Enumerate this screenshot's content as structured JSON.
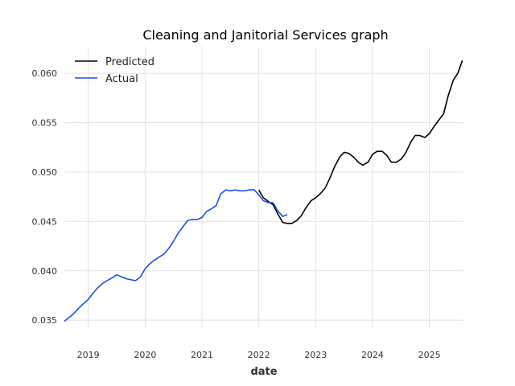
{
  "chart_data": {
    "type": "line",
    "title": "Cleaning and Janitorial Services graph",
    "xlabel": "date",
    "ylabel": "",
    "xlim": [
      2018.58,
      2025.6
    ],
    "ylim": [
      0.0342,
      0.0627
    ],
    "grid": true,
    "legend_position": "top-left",
    "x_ticks": [
      2019,
      2020,
      2021,
      2022,
      2023,
      2024,
      2025
    ],
    "x_tick_labels": [
      "2019",
      "2020",
      "2021",
      "2022",
      "2023",
      "2024",
      "2025"
    ],
    "y_ticks": [
      0.035,
      0.04,
      0.045,
      0.05,
      0.055,
      0.06
    ],
    "y_tick_labels": [
      "0.035",
      "0.040",
      "0.045",
      "0.050",
      "0.055",
      "0.060"
    ],
    "series": [
      {
        "name": "Predicted",
        "color": "#000000",
        "x": [
          2022.0,
          2022.08,
          2022.17,
          2022.25,
          2022.33,
          2022.42,
          2022.5,
          2022.58,
          2022.67,
          2022.75,
          2022.83,
          2022.92,
          2023.0,
          2023.08,
          2023.17,
          2023.25,
          2023.33,
          2023.42,
          2023.5,
          2023.58,
          2023.67,
          2023.75,
          2023.83,
          2023.92,
          2024.0,
          2024.08,
          2024.17,
          2024.25,
          2024.33,
          2024.42,
          2024.5,
          2024.58,
          2024.67,
          2024.75,
          2024.83,
          2024.92,
          2025.0,
          2025.08,
          2025.17,
          2025.25,
          2025.33,
          2025.42,
          2025.5,
          2025.58
        ],
        "values": [
          0.0482,
          0.0474,
          0.047,
          0.0467,
          0.0458,
          0.0449,
          0.0448,
          0.0448,
          0.0451,
          0.0456,
          0.0464,
          0.0471,
          0.0474,
          0.0478,
          0.0484,
          0.0494,
          0.0505,
          0.0515,
          0.052,
          0.0519,
          0.0515,
          0.051,
          0.0507,
          0.051,
          0.0518,
          0.0521,
          0.0521,
          0.0517,
          0.051,
          0.051,
          0.0513,
          0.0519,
          0.053,
          0.0537,
          0.0537,
          0.0535,
          0.0539,
          0.0546,
          0.0553,
          0.0559,
          0.0577,
          0.0593,
          0.06,
          0.0613
        ]
      },
      {
        "name": "Actual",
        "color": "#1f4fe0",
        "x": [
          2018.58,
          2018.67,
          2018.75,
          2018.83,
          2018.92,
          2019.0,
          2019.08,
          2019.17,
          2019.25,
          2019.33,
          2019.42,
          2019.5,
          2019.58,
          2019.67,
          2019.75,
          2019.83,
          2019.92,
          2020.0,
          2020.08,
          2020.17,
          2020.25,
          2020.33,
          2020.42,
          2020.5,
          2020.58,
          2020.67,
          2020.75,
          2020.83,
          2020.92,
          2021.0,
          2021.08,
          2021.17,
          2021.25,
          2021.33,
          2021.42,
          2021.5,
          2021.58,
          2021.67,
          2021.75,
          2021.83,
          2021.92,
          2022.0,
          2022.08,
          2022.17,
          2022.25,
          2022.33,
          2022.42,
          2022.5
        ],
        "values": [
          0.0349,
          0.0353,
          0.0357,
          0.0362,
          0.0367,
          0.0371,
          0.0377,
          0.0383,
          0.0387,
          0.039,
          0.0393,
          0.0396,
          0.0394,
          0.0392,
          0.0391,
          0.039,
          0.0394,
          0.0402,
          0.0407,
          0.0411,
          0.0414,
          0.0417,
          0.0423,
          0.043,
          0.0438,
          0.0445,
          0.0451,
          0.0452,
          0.0452,
          0.0454,
          0.046,
          0.0463,
          0.0466,
          0.0478,
          0.0482,
          0.0481,
          0.0482,
          0.0481,
          0.0481,
          0.0482,
          0.0482,
          0.0477,
          0.0471,
          0.0469,
          0.0469,
          0.0461,
          0.0455,
          0.0457
        ]
      }
    ]
  }
}
